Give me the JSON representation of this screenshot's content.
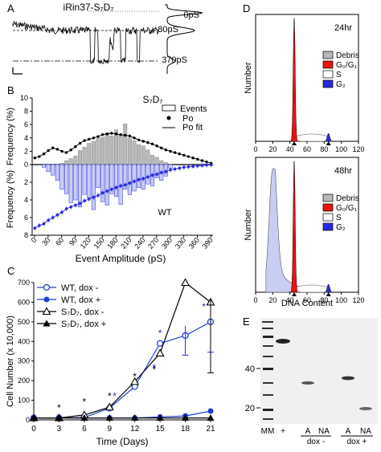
{
  "panel_labels": {
    "a": "A",
    "b": "B",
    "c": "C",
    "d": "D",
    "e": "E"
  },
  "panel_a": {
    "title": "iRin37-S₇D₇",
    "levels": [
      "0pS",
      "80pS",
      "370pS"
    ]
  },
  "panel_b": {
    "upper_title": "S₇D₇",
    "lower_title": "WT",
    "ylabel": "Frequency (%)",
    "xlabel": "Event Amplitude (pS)",
    "legend": [
      "Events",
      "Po",
      "Po fit"
    ]
  },
  "panel_d": {
    "ylabel": "Number",
    "xlabel": "DNA Content",
    "legend": [
      "Debris",
      "G₀/G₁",
      "S",
      "G₂"
    ]
  },
  "panel_e": {
    "mw_ticks": [
      "40",
      "20"
    ],
    "lanes": [
      "MM",
      "+",
      "A",
      "NA",
      "A",
      "NA"
    ],
    "groups": [
      "dox -",
      "dox +"
    ]
  },
  "chart_data": [
    {
      "panel": "C",
      "type": "line",
      "xlabel": "Time (Days)",
      "ylabel": "Cell Number (x 10,000)",
      "xlim": [
        0,
        21
      ],
      "ylim": [
        0,
        700
      ],
      "x": [
        0,
        3,
        6,
        9,
        12,
        15,
        18,
        21
      ],
      "x_ticks": [
        "0",
        "3",
        "6",
        "9",
        "12",
        "15",
        "18",
        "21"
      ],
      "y_ticks": [
        "0",
        "100",
        "200",
        "300",
        "400",
        "500",
        "600",
        "700"
      ],
      "legend_position": "top-left",
      "series": [
        {
          "name": "WT, dox -",
          "marker": "open-circle",
          "color": "#1f3fd6",
          "values": [
            10,
            10,
            12,
            60,
            170,
            390,
            430,
            500
          ]
        },
        {
          "name": "WT, dox +",
          "marker": "filled-circle",
          "color": "#1f3fd6",
          "values": [
            10,
            10,
            10,
            10,
            10,
            15,
            20,
            45
          ]
        },
        {
          "name": "S₇D₇, dox -",
          "marker": "open-triangle",
          "color": "#000000",
          "values": [
            10,
            10,
            25,
            65,
            195,
            340,
            700,
            600
          ]
        },
        {
          "name": "S₇D₇, dox +",
          "marker": "filled-triangle",
          "color": "#000000",
          "values": [
            10,
            10,
            10,
            10,
            10,
            10,
            10,
            10
          ]
        }
      ]
    },
    {
      "panel": "B",
      "type": "bar",
      "xlabel": "Event Amplitude (pS)",
      "ylabel": "Frequency (%)",
      "x_ticks": [
        "0",
        "30",
        "60",
        "90",
        "120",
        "150",
        "180",
        "210",
        "240",
        "270",
        "300",
        "330",
        "360",
        "390"
      ],
      "upper_y_ticks": [
        "0",
        "2",
        "4",
        "6",
        "8",
        "10"
      ],
      "lower_y_ticks": [
        "0",
        "2",
        "4",
        "6",
        "8"
      ],
      "upper_ylim": [
        0,
        10
      ],
      "lower_ylim": [
        0,
        8
      ],
      "bin_width": 10,
      "events_upper": [
        0,
        0,
        0,
        0,
        0,
        0,
        0.2,
        0.6,
        0.9,
        1.3,
        2.1,
        2.6,
        3.2,
        3.5,
        3.9,
        4.1,
        4.8,
        4.3,
        5.2,
        4.5,
        6.1,
        4.0,
        3.6,
        3.0,
        2.8,
        2.2,
        1.4,
        1.1,
        0.6,
        0.3,
        0,
        0,
        0,
        0,
        0,
        0,
        0,
        0,
        0,
        0
      ],
      "events_lower": [
        0,
        0,
        0.3,
        0.8,
        1.2,
        1.8,
        2.8,
        3.3,
        4.3,
        4.0,
        4.8,
        3.4,
        3.8,
        5.1,
        2.6,
        4.2,
        4.6,
        3.3,
        3.6,
        4.5,
        2.8,
        3.4,
        3.0,
        2.6,
        2.8,
        2.2,
        2.4,
        1.5,
        1.8,
        1.3,
        0.4,
        0,
        0,
        0,
        0,
        0,
        0,
        0,
        0,
        0
      ],
      "po_upper": [
        1.0,
        1.2,
        1.6,
        2.1,
        2.5,
        2.3,
        2.0,
        1.8,
        2.2,
        2.7,
        3.2,
        3.6,
        3.8,
        4.0,
        4.2,
        4.5,
        4.6,
        4.7,
        4.6,
        4.5,
        4.4,
        4.3,
        4.0,
        3.7,
        3.5,
        3.3,
        3.1,
        2.8,
        2.5,
        2.2,
        2.0,
        1.8,
        1.6,
        1.4,
        1.2,
        1.0,
        0.8,
        0.6,
        0.4,
        0.2
      ],
      "po_lower": [
        7.2,
        6.9,
        6.7,
        6.3,
        6.0,
        5.7,
        5.4,
        5.0,
        4.8,
        4.6,
        4.4,
        4.1,
        3.9,
        3.7,
        3.5,
        3.2,
        3.0,
        2.8,
        2.6,
        2.4,
        2.3,
        2.1,
        1.9,
        1.7,
        1.6,
        1.4,
        1.2,
        1.1,
        0.9,
        0.8,
        0.6,
        0.5,
        0.4,
        0.3,
        0.25,
        0.2,
        0.15,
        0.1,
        0.05,
        0.02
      ]
    },
    {
      "panel": "D-24hr",
      "type": "area",
      "title": "24hr",
      "xlabel": "DNA Content",
      "ylabel": "Number",
      "xlim": [
        0,
        120
      ],
      "x_ticks": [
        "0",
        "20",
        "40",
        "60",
        "80",
        "100",
        "120"
      ],
      "peaks": {
        "debris": [
          0,
          0
        ],
        "g0g1_center": 45,
        "s_range": [
          48,
          82
        ],
        "g2_center": 85
      }
    },
    {
      "panel": "D-48hr",
      "type": "area",
      "title": "48hr",
      "xlabel": "DNA Content",
      "ylabel": "Number",
      "xlim": [
        0,
        120
      ],
      "x_ticks": [
        "0",
        "20",
        "40",
        "60",
        "80",
        "100",
        "120"
      ],
      "peaks": {
        "debris_center": 20,
        "g0g1_center": 45,
        "s_range": [
          48,
          82
        ],
        "g2_center": 85
      }
    }
  ],
  "colors": {
    "red": "#ee1111",
    "blue": "#2a2ae0",
    "light_blue": "#c8cdf2",
    "gray": "#b8b8b8",
    "dark_gray": "#888888"
  }
}
